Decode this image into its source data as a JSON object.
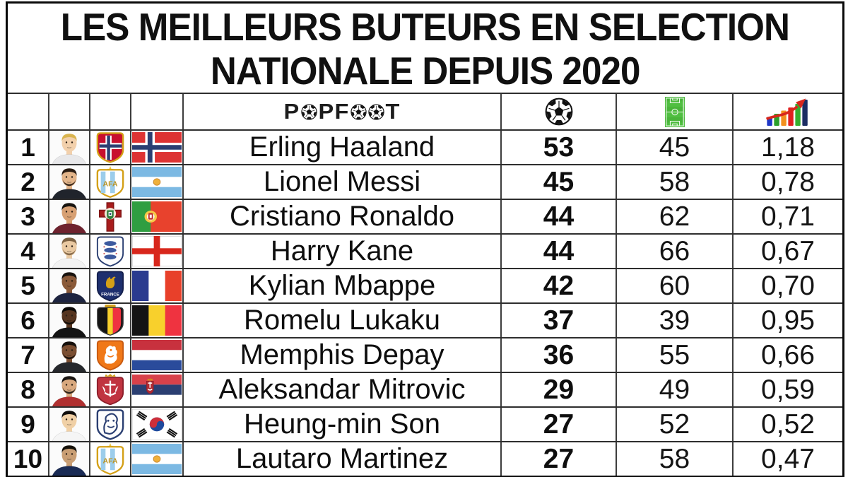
{
  "title": {
    "line1": "LES MEILLEURS BUTEURS EN SELECTION",
    "line2": "NATIONALE DEPUIS 2020"
  },
  "header": {
    "logo_text": "PopFoot",
    "goals_icon": "soccer-ball-icon",
    "matches_icon": "football-pitch-icon",
    "ratio_icon": "rising-bar-chart-icon"
  },
  "colors": {
    "border_dark": "#0a0a0a",
    "gridline": "#3d3d3d",
    "text": "#0e0e0e",
    "pitch_green": "#49b53a",
    "arrow_red": "#d8271c",
    "chart_bars": [
      "#2038c7",
      "#2ca02c",
      "#f2901e",
      "#e02020",
      "#35b02f",
      "#1b2d63"
    ]
  },
  "chart_data": {
    "type": "table",
    "title": "LES MEILLEURS BUTEURS EN SELECTION NATIONALE DEPUIS 2020",
    "columns": [
      {
        "key": "rank",
        "header": ""
      },
      {
        "key": "photo",
        "header": ""
      },
      {
        "key": "federation_crest",
        "header": ""
      },
      {
        "key": "flag",
        "header": ""
      },
      {
        "key": "player",
        "header": "PopFoot"
      },
      {
        "key": "goals",
        "header_icon": "soccer-ball-icon"
      },
      {
        "key": "matches",
        "header_icon": "football-pitch-icon"
      },
      {
        "key": "goals_per_match",
        "header_icon": "rising-bar-chart-icon"
      }
    ],
    "rows": [
      {
        "rank": "1",
        "player": "Erling Haaland",
        "country": "Norway",
        "flag": "no",
        "goals": 53,
        "matches": 45,
        "ratio": 1.18,
        "ratio_display": "1,18",
        "avatar": {
          "skin": "#f2d0ac",
          "hair": "#d9b44f",
          "shirt": "#e8e8ea",
          "beard": false
        }
      },
      {
        "rank": "2",
        "player": "Lionel Messi",
        "country": "Argentina",
        "flag": "ar",
        "goals": 45,
        "matches": 58,
        "ratio": 0.78,
        "ratio_display": "0,78",
        "avatar": {
          "skin": "#e3b58a",
          "hair": "#2a1d13",
          "shirt": "#20242c",
          "beard": true
        }
      },
      {
        "rank": "3",
        "player": "Cristiano Ronaldo",
        "country": "Portugal",
        "flag": "pt",
        "goals": 44,
        "matches": 62,
        "ratio": 0.71,
        "ratio_display": "0,71",
        "avatar": {
          "skin": "#d7a073",
          "hair": "#16130f",
          "shirt": "#6e222e",
          "beard": false
        }
      },
      {
        "rank": "4",
        "player": "Harry Kane",
        "country": "England",
        "flag": "en",
        "goals": 44,
        "matches": 66,
        "ratio": 0.67,
        "ratio_display": "0,67",
        "avatar": {
          "skin": "#e9c9a2",
          "hair": "#7d6243",
          "shirt": "#f2f2f2",
          "beard": true
        }
      },
      {
        "rank": "5",
        "player": "Kylian Mbappe",
        "country": "France",
        "flag": "fr",
        "goals": 42,
        "matches": 60,
        "ratio": 0.7,
        "ratio_display": "0,70",
        "avatar": {
          "skin": "#8a5a39",
          "hair": "#17120e",
          "shirt": "#1d2440",
          "beard": false
        }
      },
      {
        "rank": "6",
        "player": "Romelu Lukaku",
        "country": "Belgium",
        "flag": "be",
        "goals": 37,
        "matches": 39,
        "ratio": 0.95,
        "ratio_display": "0,95",
        "avatar": {
          "skin": "#55341f",
          "hair": "#0c0a08",
          "shirt": "#141414",
          "beard": true
        }
      },
      {
        "rank": "7",
        "player": "Memphis Depay",
        "country": "Netherlands",
        "flag": "nl",
        "goals": 36,
        "matches": 55,
        "ratio": 0.66,
        "ratio_display": "0,66",
        "avatar": {
          "skin": "#7b4e31",
          "hair": "#15100c",
          "shirt": "#26282c",
          "beard": true
        }
      },
      {
        "rank": "8",
        "player": "Aleksandar Mitrovic",
        "country": "Serbia",
        "flag": "rs",
        "goals": 29,
        "matches": 49,
        "ratio": 0.59,
        "ratio_display": "0,59",
        "avatar": {
          "skin": "#d8a87e",
          "hair": "#191512",
          "shirt": "#b03030",
          "beard": true
        }
      },
      {
        "rank": "9",
        "player": "Heung-min Son",
        "country": "South Korea",
        "flag": "kr",
        "goals": 27,
        "matches": 52,
        "ratio": 0.52,
        "ratio_display": "0,52",
        "avatar": {
          "skin": "#f0d0a6",
          "hair": "#0f0d0b",
          "shirt": "#f5f5f5",
          "beard": false
        }
      },
      {
        "rank": "10",
        "player": "Lautaro Martinez",
        "country": "Argentina",
        "flag": "ar",
        "goals": 27,
        "matches": 58,
        "ratio": 0.47,
        "ratio_display": "0,47",
        "avatar": {
          "skin": "#c99e74",
          "hair": "#141009",
          "shirt": "#1a2b55",
          "beard": false
        }
      }
    ]
  }
}
